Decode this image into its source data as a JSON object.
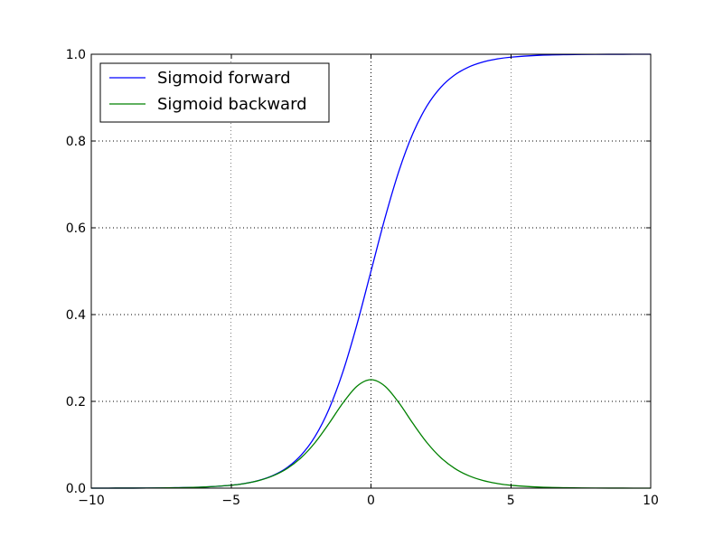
{
  "chart_data": {
    "type": "line",
    "title": "",
    "xlabel": "",
    "ylabel": "",
    "xlim": [
      -10,
      10
    ],
    "ylim": [
      0,
      1
    ],
    "x_ticks": [
      -10,
      -5,
      0,
      5,
      10
    ],
    "x_tick_labels": [
      "−10",
      "−5",
      "0",
      "5",
      "10"
    ],
    "y_ticks": [
      0.0,
      0.2,
      0.4,
      0.6,
      0.8,
      1.0
    ],
    "y_tick_labels": [
      "0.0",
      "0.2",
      "0.4",
      "0.6",
      "0.8",
      "1.0"
    ],
    "grid": true,
    "legend": {
      "location": "top-left"
    },
    "x": [
      -10,
      -9,
      -8,
      -7,
      -6,
      -5,
      -4.5,
      -4,
      -3.5,
      -3,
      -2.5,
      -2,
      -1.5,
      -1,
      -0.5,
      0,
      0.5,
      1,
      1.5,
      2,
      2.5,
      3,
      3.5,
      4,
      4.5,
      5,
      6,
      7,
      8,
      9,
      10
    ],
    "series": [
      {
        "name": "Sigmoid forward",
        "color": "#0000ff",
        "values": [
          0.0,
          0.0001,
          0.0003,
          0.0009,
          0.0025,
          0.0067,
          0.011,
          0.018,
          0.0293,
          0.0474,
          0.0759,
          0.1192,
          0.1824,
          0.2689,
          0.3775,
          0.5,
          0.6225,
          0.7311,
          0.8176,
          0.8808,
          0.9241,
          0.9526,
          0.9707,
          0.982,
          0.989,
          0.9933,
          0.9975,
          0.9991,
          0.9997,
          0.9999,
          1.0
        ]
      },
      {
        "name": "Sigmoid backward",
        "color": "#008000",
        "values": [
          0.0,
          0.0001,
          0.0003,
          0.0009,
          0.0025,
          0.0066,
          0.0109,
          0.0177,
          0.0285,
          0.0452,
          0.0701,
          0.105,
          0.1491,
          0.1966,
          0.235,
          0.25,
          0.235,
          0.1966,
          0.1491,
          0.105,
          0.0701,
          0.0452,
          0.0285,
          0.0177,
          0.0109,
          0.0066,
          0.0025,
          0.0009,
          0.0003,
          0.0001,
          0.0
        ]
      }
    ]
  }
}
